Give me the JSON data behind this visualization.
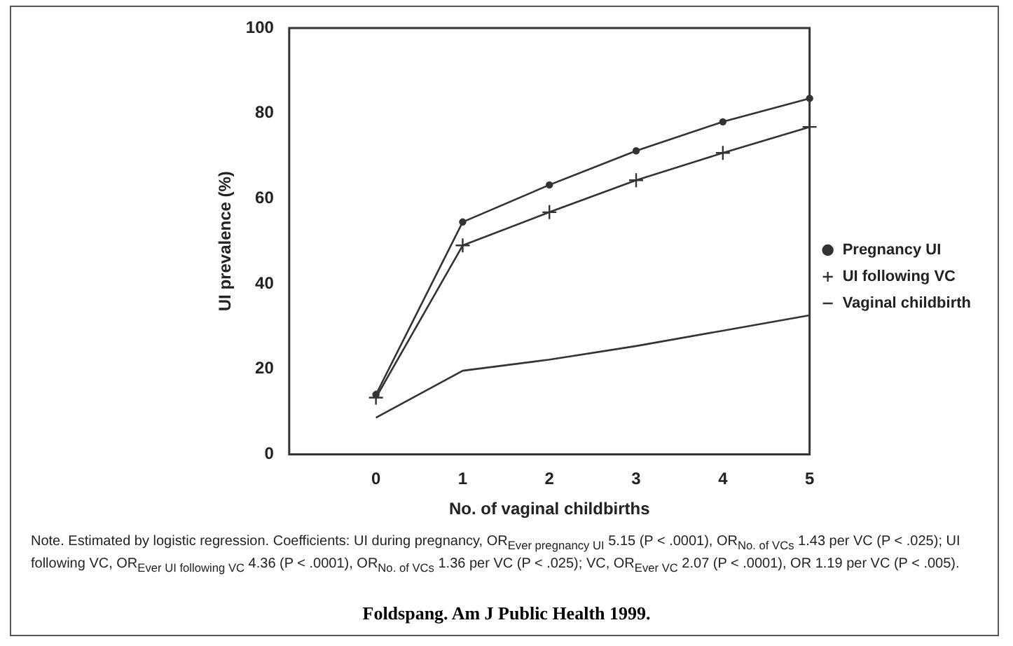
{
  "chart_data": {
    "type": "line",
    "xlabel": "No. of vaginal childbirths",
    "ylabel": "UI prevalence (%)",
    "x": [
      0,
      1,
      2,
      3,
      4,
      5
    ],
    "xlim": [
      -1,
      5
    ],
    "xticks": [
      0,
      1,
      2,
      3,
      4,
      5
    ],
    "ylim": [
      0,
      100
    ],
    "yticks": [
      0,
      20,
      40,
      60,
      80,
      100
    ],
    "series": [
      {
        "name": "Pregnancy UI",
        "color": "#333333",
        "marker": "circle",
        "values": [
          14,
          54.5,
          63.2,
          71.2,
          78,
          83.5
        ]
      },
      {
        "name": "UI following VC",
        "color": "#333333",
        "marker": "cross",
        "values": [
          13.3,
          49,
          56.8,
          64.3,
          70.7,
          76.8
        ]
      },
      {
        "name": "Vaginal childbirth",
        "color": "#333333",
        "marker": "none",
        "values": [
          8.6,
          19.6,
          22.2,
          25.4,
          29,
          32.6
        ]
      }
    ],
    "grid": false,
    "legend": "right",
    "line_style": "solid",
    "annotations": [
      "Note. Estimated by logistic regression. Coefficients: UI during pregnancy, OR$_{Ever pregnancy UI}$ 5.15 (P < .0001), OR$_{No. of VCs}$ 1.43 per VC (P < .025); UI following VC, OR$_{Ever UI following VC}$ 4.36 (P < .0001), OR$_{No. of VCs}$ 1.36 per VC (P < .025); VC, OR$_{Ever VC}$ 2.07 (P < .0001), OR 1.19 per VC (P < .005).",
      "Foldspang. Am J Public Health 1999."
    ]
  }
}
